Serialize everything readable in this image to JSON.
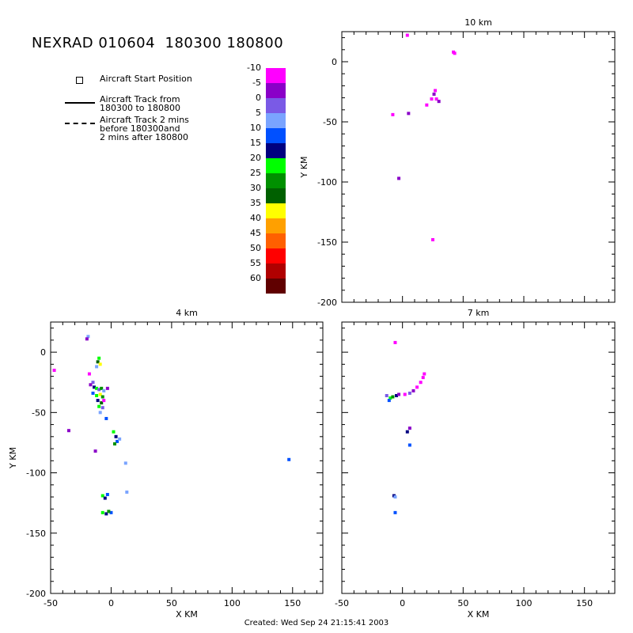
{
  "header": {
    "title": "NEXRAD 010604  180300 180800"
  },
  "legend": {
    "start_position": "Aircraft Start Position",
    "track": "Aircraft Track from\n180300 to 180800",
    "track_extended": "Aircraft Track 2 mins\nbefore 180300and\n2 mins after 180800"
  },
  "colorbar": {
    "levels": [
      {
        "label": "-10",
        "color": "#ff00ff"
      },
      {
        "label": "-5",
        "color": "#8a00c8"
      },
      {
        "label": "0",
        "color": "#7a5ae6"
      },
      {
        "label": "5",
        "color": "#7aa4ff"
      },
      {
        "label": "10",
        "color": "#0050ff"
      },
      {
        "label": "15",
        "color": "#000080"
      },
      {
        "label": "20",
        "color": "#00ff00"
      },
      {
        "label": "25",
        "color": "#009000"
      },
      {
        "label": "30",
        "color": "#006000"
      },
      {
        "label": "35",
        "color": "#ffff00"
      },
      {
        "label": "40",
        "color": "#ffa000"
      },
      {
        "label": "45",
        "color": "#ff6000"
      },
      {
        "label": "50",
        "color": "#ff0000"
      },
      {
        "label": "55",
        "color": "#b00000"
      },
      {
        "label": "60",
        "color": "#600000"
      }
    ]
  },
  "footer": {
    "created": "Created: Wed Sep 24 21:15:41 2003"
  },
  "chart_data": [
    {
      "type": "scatter",
      "title": "10 km",
      "xlabel": "",
      "ylabel": "Y KM",
      "xlim": [
        -50,
        175
      ],
      "ylim": [
        -200,
        25
      ],
      "xticks": [],
      "yticks": [
        0,
        -50,
        -100,
        -150,
        -200
      ],
      "points": [
        {
          "x": 4,
          "y": 22,
          "level": "-10"
        },
        {
          "x": 42,
          "y": 8,
          "level": "-10"
        },
        {
          "x": 43,
          "y": 7,
          "level": "-10"
        },
        {
          "x": 27,
          "y": -24,
          "level": "-10"
        },
        {
          "x": 26,
          "y": -27,
          "level": "-5"
        },
        {
          "x": 24,
          "y": -31,
          "level": "-10"
        },
        {
          "x": 28,
          "y": -31,
          "level": "-10"
        },
        {
          "x": 30,
          "y": -33,
          "level": "-5"
        },
        {
          "x": 20,
          "y": -36,
          "level": "-10"
        },
        {
          "x": 5,
          "y": -43,
          "level": "-5"
        },
        {
          "x": -8,
          "y": -44,
          "level": "-10"
        },
        {
          "x": -3,
          "y": -97,
          "level": "-5"
        },
        {
          "x": 25,
          "y": -148,
          "level": "-10"
        }
      ]
    },
    {
      "type": "scatter",
      "title": "4 km",
      "xlabel": "X KM",
      "ylabel": "Y KM",
      "xlim": [
        -50,
        175
      ],
      "ylim": [
        -200,
        25
      ],
      "xticks": [
        -50,
        0,
        50,
        100,
        150
      ],
      "yticks": [
        0,
        -50,
        -100,
        -150,
        -200
      ],
      "points": [
        {
          "x": -19,
          "y": 13,
          "level": "5"
        },
        {
          "x": -20,
          "y": 11,
          "level": "-5"
        },
        {
          "x": -10,
          "y": -5,
          "level": "20"
        },
        {
          "x": -11,
          "y": -8,
          "level": "30"
        },
        {
          "x": -9,
          "y": -10,
          "level": "35"
        },
        {
          "x": -12,
          "y": -12,
          "level": "5"
        },
        {
          "x": -47,
          "y": -15,
          "level": "-10"
        },
        {
          "x": -18,
          "y": -18,
          "level": "-10"
        },
        {
          "x": -15,
          "y": -25,
          "level": "0"
        },
        {
          "x": -17,
          "y": -27,
          "level": "-5"
        },
        {
          "x": -14,
          "y": -29,
          "level": "15"
        },
        {
          "x": -12,
          "y": -30,
          "level": "20"
        },
        {
          "x": -10,
          "y": -31,
          "level": "0"
        },
        {
          "x": -8,
          "y": -30,
          "level": "25"
        },
        {
          "x": -6,
          "y": -32,
          "level": "5"
        },
        {
          "x": -3,
          "y": -30,
          "level": "-5"
        },
        {
          "x": -15,
          "y": -34,
          "level": "10"
        },
        {
          "x": -12,
          "y": -36,
          "level": "20"
        },
        {
          "x": -9,
          "y": -35,
          "level": "35"
        },
        {
          "x": -7,
          "y": -37,
          "level": "25"
        },
        {
          "x": -11,
          "y": -40,
          "level": "15"
        },
        {
          "x": -8,
          "y": -42,
          "level": "30"
        },
        {
          "x": -6,
          "y": -40,
          "level": "-10"
        },
        {
          "x": -10,
          "y": -45,
          "level": "20"
        },
        {
          "x": -7,
          "y": -46,
          "level": "0"
        },
        {
          "x": -9,
          "y": -50,
          "level": "5"
        },
        {
          "x": -4,
          "y": -55,
          "level": "10"
        },
        {
          "x": -35,
          "y": -65,
          "level": "-5"
        },
        {
          "x": 2,
          "y": -66,
          "level": "20"
        },
        {
          "x": 4,
          "y": -70,
          "level": "15"
        },
        {
          "x": 5,
          "y": -74,
          "level": "10"
        },
        {
          "x": 3,
          "y": -76,
          "level": "25"
        },
        {
          "x": 7,
          "y": -72,
          "level": "5"
        },
        {
          "x": -13,
          "y": -82,
          "level": "-5"
        },
        {
          "x": 12,
          "y": -92,
          "level": "5"
        },
        {
          "x": 147,
          "y": -89,
          "level": "10"
        },
        {
          "x": 13,
          "y": -116,
          "level": "5"
        },
        {
          "x": -7,
          "y": -119,
          "level": "20"
        },
        {
          "x": -5,
          "y": -121,
          "level": "15"
        },
        {
          "x": -3,
          "y": -118,
          "level": "10"
        },
        {
          "x": -7,
          "y": -133,
          "level": "20"
        },
        {
          "x": -4,
          "y": -134,
          "level": "15"
        },
        {
          "x": 0,
          "y": -133,
          "level": "10"
        },
        {
          "x": -2,
          "y": -132,
          "level": "25"
        }
      ]
    },
    {
      "type": "scatter",
      "title": "7 km",
      "xlabel": "X KM",
      "ylabel": "",
      "xlim": [
        -50,
        175
      ],
      "ylim": [
        -200,
        25
      ],
      "xticks": [
        -50,
        0,
        50,
        100,
        150
      ],
      "yticks": [],
      "points": [
        {
          "x": -6,
          "y": 8,
          "level": "-10"
        },
        {
          "x": -13,
          "y": -36,
          "level": "0"
        },
        {
          "x": -10,
          "y": -38,
          "level": "20"
        },
        {
          "x": -8,
          "y": -37,
          "level": "25"
        },
        {
          "x": -5,
          "y": -36,
          "level": "15"
        },
        {
          "x": -11,
          "y": -40,
          "level": "10"
        },
        {
          "x": -3,
          "y": -35,
          "level": "-5"
        },
        {
          "x": 2,
          "y": -35,
          "level": "-10"
        },
        {
          "x": 6,
          "y": -34,
          "level": "0"
        },
        {
          "x": 9,
          "y": -32,
          "level": "-5"
        },
        {
          "x": 12,
          "y": -29,
          "level": "-10"
        },
        {
          "x": 15,
          "y": -25,
          "level": "-10"
        },
        {
          "x": 17,
          "y": -21,
          "level": "-10"
        },
        {
          "x": 18,
          "y": -18,
          "level": "-10"
        },
        {
          "x": 6,
          "y": -63,
          "level": "-5"
        },
        {
          "x": 4,
          "y": -66,
          "level": "15"
        },
        {
          "x": 6,
          "y": -77,
          "level": "10"
        },
        {
          "x": -7,
          "y": -119,
          "level": "15"
        },
        {
          "x": -6,
          "y": -120,
          "level": "5"
        },
        {
          "x": -6,
          "y": -133,
          "level": "10"
        }
      ]
    }
  ]
}
